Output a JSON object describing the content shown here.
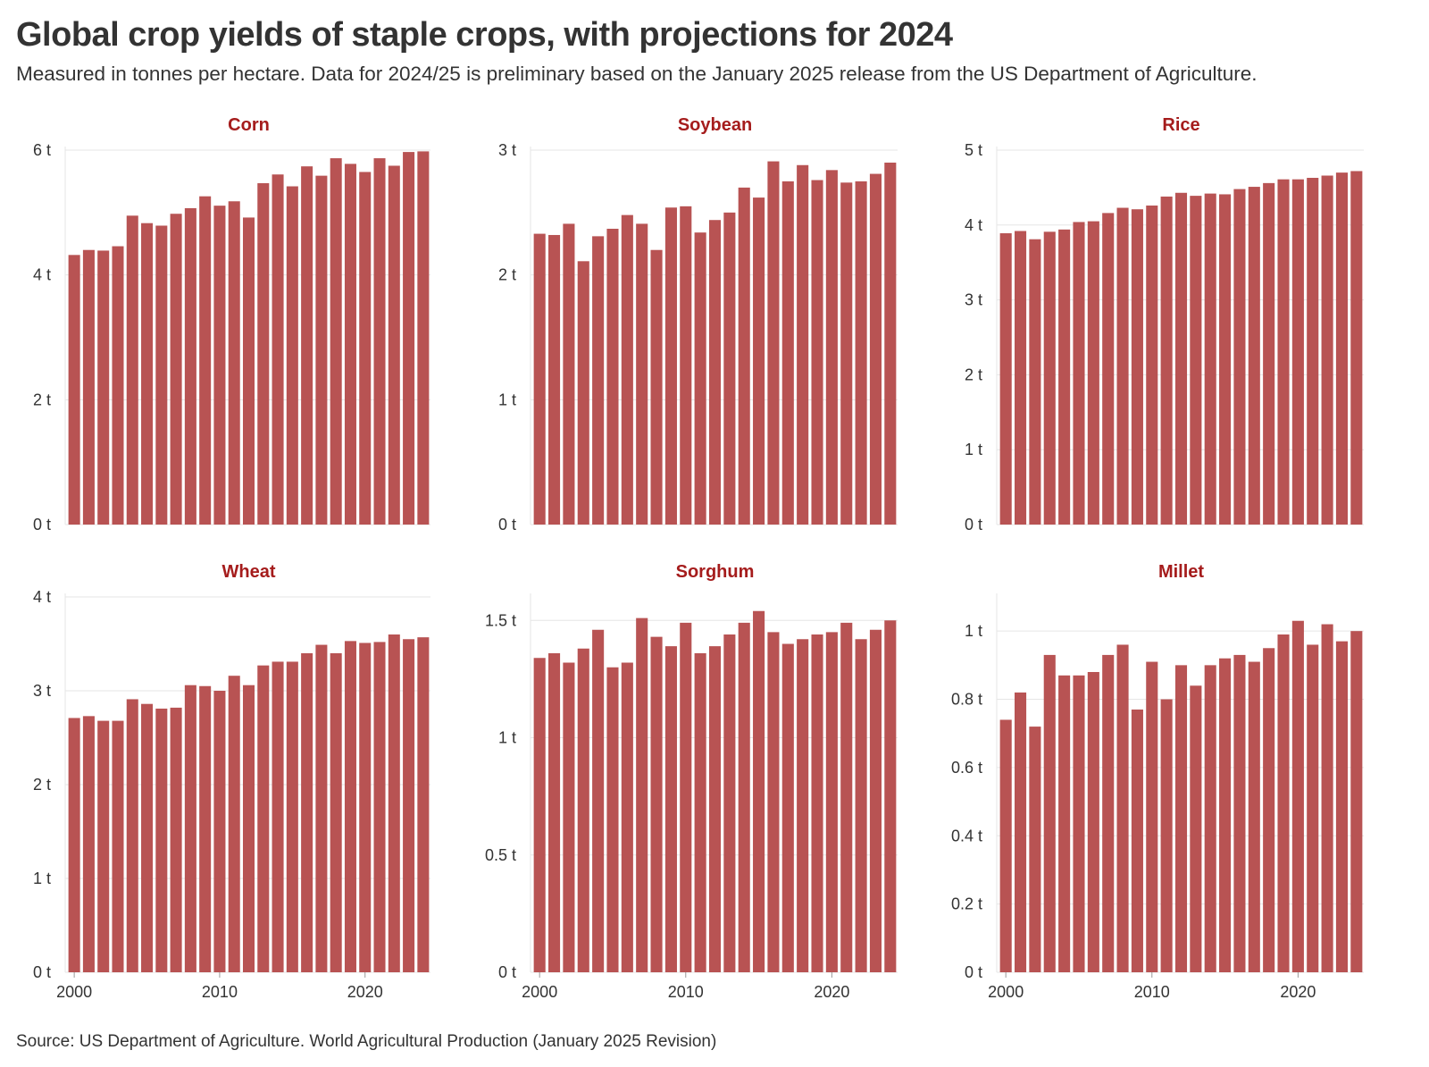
{
  "title": "Global crop yields of staple crops, with projections for 2024",
  "subtitle": "Measured in tonnes per hectare. Data for 2024/25 is preliminary based on the January 2025 release from the US Department of Agriculture.",
  "source": "Source: US Department of Agriculture. World Agricultural Production (January 2025 Revision)",
  "colors": {
    "bar": "#b85353",
    "panel_title": "#a51c1c",
    "grid": "#e6e6e6",
    "text": "#333333"
  },
  "chart_data": [
    {
      "type": "bar",
      "title": "Corn",
      "unit": "t",
      "x": [
        2000,
        2001,
        2002,
        2003,
        2004,
        2005,
        2006,
        2007,
        2008,
        2009,
        2010,
        2011,
        2012,
        2013,
        2014,
        2015,
        2016,
        2017,
        2018,
        2019,
        2020,
        2021,
        2022,
        2023,
        2024
      ],
      "values": [
        4.32,
        4.4,
        4.39,
        4.46,
        4.95,
        4.83,
        4.79,
        4.98,
        5.07,
        5.26,
        5.11,
        5.18,
        4.92,
        5.47,
        5.61,
        5.42,
        5.74,
        5.59,
        5.87,
        5.78,
        5.65,
        5.87,
        5.75,
        5.97,
        5.98
      ],
      "ylim": [
        0,
        6
      ],
      "yticks": [
        0,
        2,
        4,
        6
      ],
      "ytick_labels": [
        "0 t",
        "2 t",
        "4 t",
        "6 t"
      ],
      "xticks": [
        2000,
        2010,
        2020
      ],
      "xtick_labels": [
        "2000",
        "2010",
        "2020"
      ],
      "grid": true
    },
    {
      "type": "bar",
      "title": "Soybean",
      "unit": "t",
      "x": [
        2000,
        2001,
        2002,
        2003,
        2004,
        2005,
        2006,
        2007,
        2008,
        2009,
        2010,
        2011,
        2012,
        2013,
        2014,
        2015,
        2016,
        2017,
        2018,
        2019,
        2020,
        2021,
        2022,
        2023,
        2024
      ],
      "values": [
        2.33,
        2.32,
        2.41,
        2.11,
        2.31,
        2.37,
        2.48,
        2.41,
        2.2,
        2.54,
        2.55,
        2.34,
        2.44,
        2.5,
        2.7,
        2.62,
        2.91,
        2.75,
        2.88,
        2.76,
        2.84,
        2.74,
        2.75,
        2.81,
        2.9
      ],
      "ylim": [
        0,
        3
      ],
      "yticks": [
        0,
        1,
        2,
        3
      ],
      "ytick_labels": [
        "0 t",
        "1 t",
        "2 t",
        "3 t"
      ],
      "xticks": [
        2000,
        2010,
        2020
      ],
      "xtick_labels": [
        "2000",
        "2010",
        "2020"
      ],
      "grid": true
    },
    {
      "type": "bar",
      "title": "Rice",
      "unit": "t",
      "x": [
        2000,
        2001,
        2002,
        2003,
        2004,
        2005,
        2006,
        2007,
        2008,
        2009,
        2010,
        2011,
        2012,
        2013,
        2014,
        2015,
        2016,
        2017,
        2018,
        2019,
        2020,
        2021,
        2022,
        2023,
        2024
      ],
      "values": [
        3.89,
        3.92,
        3.81,
        3.91,
        3.94,
        4.04,
        4.05,
        4.16,
        4.23,
        4.21,
        4.26,
        4.38,
        4.43,
        4.39,
        4.42,
        4.41,
        4.48,
        4.51,
        4.56,
        4.61,
        4.61,
        4.63,
        4.66,
        4.7,
        4.72
      ],
      "ylim": [
        0,
        5
      ],
      "yticks": [
        0,
        1,
        2,
        3,
        4,
        5
      ],
      "ytick_labels": [
        "0 t",
        "1 t",
        "2 t",
        "3 t",
        "4 t",
        "5 t"
      ],
      "xticks": [
        2000,
        2010,
        2020
      ],
      "xtick_labels": [
        "2000",
        "2010",
        "2020"
      ],
      "grid": true
    },
    {
      "type": "bar",
      "title": "Wheat",
      "unit": "t",
      "x": [
        2000,
        2001,
        2002,
        2003,
        2004,
        2005,
        2006,
        2007,
        2008,
        2009,
        2010,
        2011,
        2012,
        2013,
        2014,
        2015,
        2016,
        2017,
        2018,
        2019,
        2020,
        2021,
        2022,
        2023,
        2024
      ],
      "values": [
        2.71,
        2.73,
        2.68,
        2.68,
        2.91,
        2.86,
        2.81,
        2.82,
        3.06,
        3.05,
        3.0,
        3.16,
        3.06,
        3.27,
        3.31,
        3.31,
        3.4,
        3.49,
        3.4,
        3.53,
        3.51,
        3.52,
        3.6,
        3.55,
        3.57
      ],
      "ylim": [
        0,
        4
      ],
      "yticks": [
        0,
        1,
        2,
        3,
        4
      ],
      "ytick_labels": [
        "0 t",
        "1 t",
        "2 t",
        "3 t",
        "4 t"
      ],
      "xticks": [
        2000,
        2010,
        2020
      ],
      "xtick_labels": [
        "2000",
        "2010",
        "2020"
      ],
      "grid": true
    },
    {
      "type": "bar",
      "title": "Sorghum",
      "unit": "t",
      "x": [
        2000,
        2001,
        2002,
        2003,
        2004,
        2005,
        2006,
        2007,
        2008,
        2009,
        2010,
        2011,
        2012,
        2013,
        2014,
        2015,
        2016,
        2017,
        2018,
        2019,
        2020,
        2021,
        2022,
        2023,
        2024
      ],
      "values": [
        1.34,
        1.36,
        1.32,
        1.38,
        1.46,
        1.3,
        1.32,
        1.51,
        1.43,
        1.39,
        1.49,
        1.36,
        1.39,
        1.44,
        1.49,
        1.54,
        1.45,
        1.4,
        1.42,
        1.44,
        1.45,
        1.49,
        1.42,
        1.46,
        1.5
      ],
      "ylim": [
        0,
        1.6
      ],
      "yticks": [
        0,
        0.5,
        1,
        1.5
      ],
      "ytick_labels": [
        "0 t",
        "0.5 t",
        "1 t",
        "1.5 t"
      ],
      "xticks": [
        2000,
        2010,
        2020
      ],
      "xtick_labels": [
        "2000",
        "2010",
        "2020"
      ],
      "grid": true
    },
    {
      "type": "bar",
      "title": "Millet",
      "unit": "t",
      "x": [
        2000,
        2001,
        2002,
        2003,
        2004,
        2005,
        2006,
        2007,
        2008,
        2009,
        2010,
        2011,
        2012,
        2013,
        2014,
        2015,
        2016,
        2017,
        2018,
        2019,
        2020,
        2021,
        2022,
        2023,
        2024
      ],
      "values": [
        0.74,
        0.82,
        0.72,
        0.93,
        0.87,
        0.87,
        0.88,
        0.93,
        0.96,
        0.77,
        0.91,
        0.8,
        0.9,
        0.84,
        0.9,
        0.92,
        0.93,
        0.91,
        0.95,
        0.99,
        1.03,
        0.96,
        1.02,
        0.97,
        1.0
      ],
      "ylim": [
        0,
        1.1
      ],
      "yticks": [
        0,
        0.2,
        0.4,
        0.6,
        0.8,
        1
      ],
      "ytick_labels": [
        "0 t",
        "0.2 t",
        "0.4 t",
        "0.6 t",
        "0.8 t",
        "1 t"
      ],
      "xticks": [
        2000,
        2010,
        2020
      ],
      "xtick_labels": [
        "2000",
        "2010",
        "2020"
      ],
      "grid": true
    }
  ]
}
